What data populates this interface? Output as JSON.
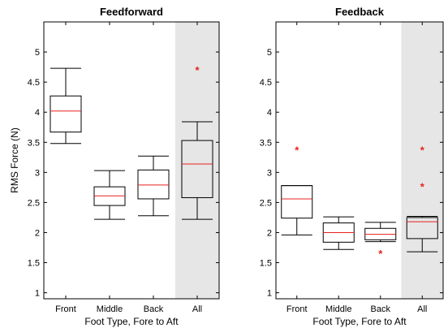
{
  "chart_data": [
    {
      "type": "box",
      "title": "Feedforward",
      "xlabel": "Foot Type, Fore to Aft",
      "ylabel": "RMS Force (N)",
      "ylim": [
        0.9,
        5.5
      ],
      "yticks": [
        "1",
        "1.5",
        "2",
        "2.5",
        "3",
        "3.5",
        "4",
        "4.5",
        "5"
      ],
      "yticks_values": [
        1,
        1.5,
        2,
        2.5,
        3,
        3.5,
        4,
        4.5,
        5
      ],
      "categories": [
        "Front",
        "Middle",
        "Back",
        "All"
      ],
      "highlighted_category": "All",
      "boxes": [
        {
          "category": "Front",
          "whisker_low": 3.48,
          "q1": 3.67,
          "median": 4.02,
          "q3": 4.27,
          "whisker_high": 4.73,
          "outliers": []
        },
        {
          "category": "Middle",
          "whisker_low": 2.22,
          "q1": 2.45,
          "median": 2.61,
          "q3": 2.76,
          "whisker_high": 3.03,
          "outliers": []
        },
        {
          "category": "Back",
          "whisker_low": 2.28,
          "q1": 2.56,
          "median": 2.79,
          "q3": 3.04,
          "whisker_high": 3.27,
          "outliers": []
        },
        {
          "category": "All",
          "whisker_low": 2.22,
          "q1": 2.58,
          "median": 3.14,
          "q3": 3.53,
          "whisker_high": 3.84,
          "outliers": [
            4.72
          ]
        }
      ]
    },
    {
      "type": "box",
      "title": "Feedback",
      "xlabel": "Foot Type, Fore to Aft",
      "ylabel": "",
      "ylim": [
        0.9,
        5.5
      ],
      "yticks": [
        "1",
        "1.5",
        "2",
        "2.5",
        "3",
        "3.5",
        "4",
        "4.5",
        "5"
      ],
      "yticks_values": [
        1,
        1.5,
        2,
        2.5,
        3,
        3.5,
        4,
        4.5,
        5
      ],
      "categories": [
        "Front",
        "Middle",
        "Back",
        "All"
      ],
      "highlighted_category": "All",
      "boxes": [
        {
          "category": "Front",
          "whisker_low": 1.96,
          "q1": 2.24,
          "median": 2.56,
          "q3": 2.78,
          "whisker_high": 2.78,
          "outliers": [
            3.39
          ]
        },
        {
          "category": "Middle",
          "whisker_low": 1.72,
          "q1": 1.84,
          "median": 2.0,
          "q3": 2.16,
          "whisker_high": 2.26,
          "outliers": []
        },
        {
          "category": "Back",
          "whisker_low": 1.85,
          "q1": 1.88,
          "median": 1.97,
          "q3": 2.07,
          "whisker_high": 2.17,
          "outliers": [
            1.67
          ]
        },
        {
          "category": "All",
          "whisker_low": 1.68,
          "q1": 1.9,
          "median": 2.18,
          "q3": 2.25,
          "whisker_high": 2.27,
          "outliers": [
            2.78,
            3.39
          ]
        }
      ]
    }
  ],
  "colors": {
    "box_edge": "#000000",
    "median": "#e8211f",
    "outlier": "#e8211f",
    "highlight_band": "#e6e6e6",
    "axes": "#000000"
  }
}
